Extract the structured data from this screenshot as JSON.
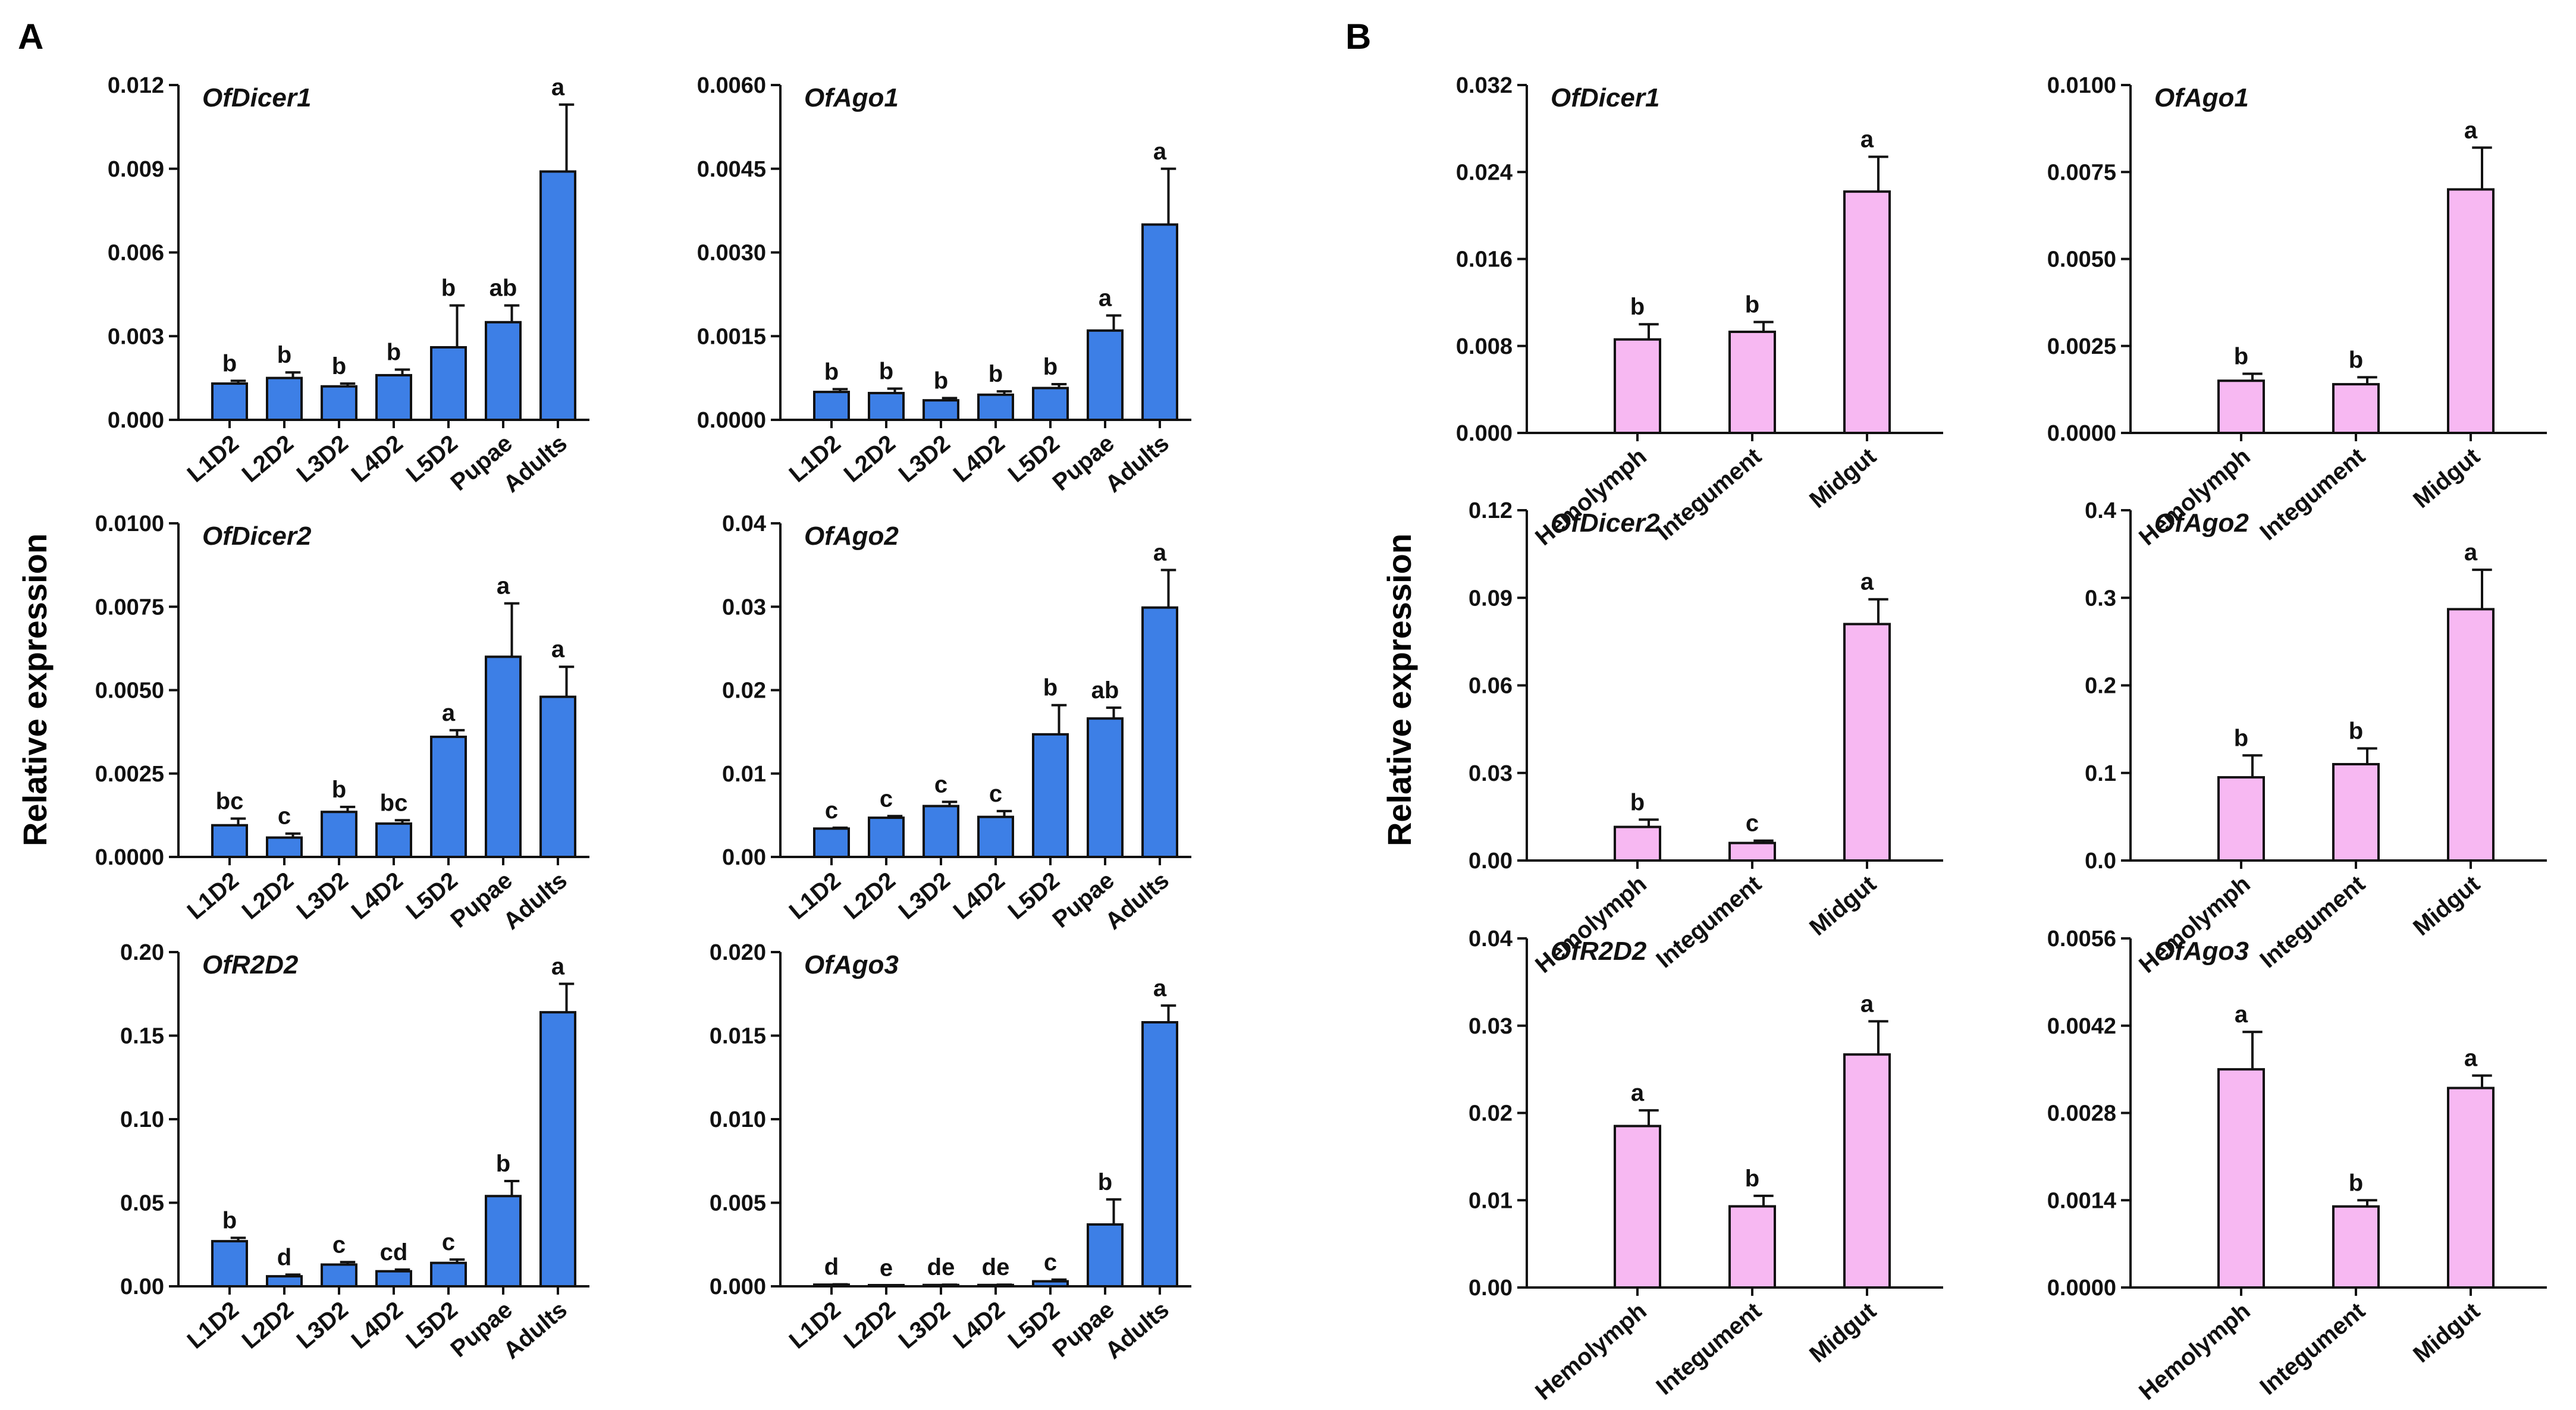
{
  "figure": {
    "panel_a_label": "A",
    "panel_b_label": "B",
    "ylabel": "Relative expression",
    "colors": {
      "a_bar": "#3d7fe6",
      "b_bar": "#f7b8f2",
      "stroke": "#111111"
    }
  },
  "chart_data": [
    {
      "panel": "A",
      "type": "bar",
      "title": "OfDicer1",
      "categories": [
        "L1D2",
        "L2D2",
        "L3D2",
        "L4D2",
        "L5D2",
        "Pupae",
        "Adults"
      ],
      "values": [
        0.0013,
        0.0015,
        0.0012,
        0.0016,
        0.0026,
        0.0035,
        0.0089
      ],
      "errors": [
        0.0001,
        0.0002,
        0.0001,
        0.0002,
        0.0015,
        0.0006,
        0.0024
      ],
      "letters": [
        "b",
        "b",
        "b",
        "b",
        "b",
        "ab",
        "a"
      ],
      "yticks": [
        "0.000",
        "0.003",
        "0.006",
        "0.009",
        "0.012"
      ],
      "ylim": [
        0,
        0.012
      ]
    },
    {
      "panel": "A",
      "type": "bar",
      "title": "OfAgo1",
      "categories": [
        "L1D2",
        "L2D2",
        "L3D2",
        "L4D2",
        "L5D2",
        "Pupae",
        "Adults"
      ],
      "values": [
        0.0005,
        0.00048,
        0.00035,
        0.00045,
        0.00057,
        0.0016,
        0.0035
      ],
      "errors": [
        5e-05,
        8e-05,
        4e-05,
        6e-05,
        7e-05,
        0.00027,
        0.001
      ],
      "letters": [
        "b",
        "b",
        "b",
        "b",
        "b",
        "a",
        "a"
      ],
      "yticks": [
        "0.0000",
        "0.0015",
        "0.0030",
        "0.0045",
        "0.0060"
      ],
      "ylim": [
        0,
        0.006
      ]
    },
    {
      "panel": "A",
      "type": "bar",
      "title": "OfDicer2",
      "categories": [
        "L1D2",
        "L2D2",
        "L3D2",
        "L4D2",
        "L5D2",
        "Pupae",
        "Adults"
      ],
      "values": [
        0.00095,
        0.00058,
        0.00135,
        0.001,
        0.0036,
        0.006,
        0.0048
      ],
      "errors": [
        0.0002,
        0.00012,
        0.00015,
        0.0001,
        0.0002,
        0.0016,
        0.0009
      ],
      "letters": [
        "bc",
        "c",
        "b",
        "bc",
        "a",
        "a",
        "a"
      ],
      "yticks": [
        "0.0000",
        "0.0025",
        "0.0050",
        "0.0075",
        "0.0100"
      ],
      "ylim": [
        0,
        0.01
      ]
    },
    {
      "panel": "A",
      "type": "bar",
      "title": "OfAgo2",
      "categories": [
        "L1D2",
        "L2D2",
        "L3D2",
        "L4D2",
        "L5D2",
        "Pupae",
        "Adults"
      ],
      "values": [
        0.0034,
        0.0047,
        0.0061,
        0.0048,
        0.0147,
        0.0166,
        0.0299
      ],
      "errors": [
        0.0001,
        0.0002,
        0.0005,
        0.0007,
        0.0035,
        0.0013,
        0.0045
      ],
      "letters": [
        "c",
        "c",
        "c",
        "c",
        "b",
        "ab",
        "a"
      ],
      "yticks": [
        "0.00",
        "0.01",
        "0.02",
        "0.03",
        "0.04"
      ],
      "ylim": [
        0,
        0.04
      ]
    },
    {
      "panel": "A",
      "type": "bar",
      "title": "OfR2D2",
      "categories": [
        "L1D2",
        "L2D2",
        "L3D2",
        "L4D2",
        "L5D2",
        "Pupae",
        "Adults"
      ],
      "values": [
        0.027,
        0.006,
        0.013,
        0.009,
        0.014,
        0.054,
        0.164
      ],
      "errors": [
        0.002,
        0.001,
        0.0015,
        0.001,
        0.002,
        0.009,
        0.017
      ],
      "letters": [
        "b",
        "d",
        "c",
        "cd",
        "c",
        "b",
        "a"
      ],
      "yticks": [
        "0.00",
        "0.05",
        "0.10",
        "0.15",
        "0.20"
      ],
      "ylim": [
        0,
        0.2
      ]
    },
    {
      "panel": "A",
      "type": "bar",
      "title": "OfAgo3",
      "categories": [
        "L1D2",
        "L2D2",
        "L3D2",
        "L4D2",
        "L5D2",
        "Pupae",
        "Adults"
      ],
      "values": [
        0.0001,
        5e-05,
        8e-05,
        8e-05,
        0.0003,
        0.0037,
        0.0158
      ],
      "errors": [
        2e-05,
        1e-05,
        2e-05,
        2e-05,
        0.0001,
        0.0015,
        0.001
      ],
      "letters": [
        "d",
        "e",
        "de",
        "de",
        "c",
        "b",
        "a"
      ],
      "yticks": [
        "0.000",
        "0.005",
        "0.010",
        "0.015",
        "0.020"
      ],
      "ylim": [
        0,
        0.02
      ]
    },
    {
      "panel": "B",
      "type": "bar",
      "title": "OfDicer1",
      "categories": [
        "Hemolymph",
        "Integument",
        "Midgut"
      ],
      "values": [
        0.0086,
        0.0093,
        0.0222
      ],
      "errors": [
        0.0014,
        0.0009,
        0.0032
      ],
      "letters": [
        "b",
        "b",
        "a"
      ],
      "yticks": [
        "0.000",
        "0.008",
        "0.016",
        "0.024",
        "0.032"
      ],
      "ylim": [
        0,
        0.032
      ]
    },
    {
      "panel": "B",
      "type": "bar",
      "title": "OfAgo1",
      "categories": [
        "Hemolymph",
        "Integument",
        "Midgut"
      ],
      "values": [
        0.0015,
        0.0014,
        0.007
      ],
      "errors": [
        0.0002,
        0.0002,
        0.0012
      ],
      "letters": [
        "b",
        "b",
        "a"
      ],
      "yticks": [
        "0.0000",
        "0.0025",
        "0.0050",
        "0.0075",
        "0.0100"
      ],
      "ylim": [
        0,
        0.01
      ]
    },
    {
      "panel": "B",
      "type": "bar",
      "title": "OfDicer2",
      "categories": [
        "Hemolymph",
        "Integument",
        "Midgut"
      ],
      "values": [
        0.0115,
        0.006,
        0.081
      ],
      "errors": [
        0.0025,
        0.0008,
        0.0085
      ],
      "letters": [
        "b",
        "c",
        "a"
      ],
      "yticks": [
        "0.00",
        "0.03",
        "0.06",
        "0.09",
        "0.12"
      ],
      "ylim": [
        0,
        0.12
      ]
    },
    {
      "panel": "B",
      "type": "bar",
      "title": "OfAgo2",
      "categories": [
        "Hemolymph",
        "Integument",
        "Midgut"
      ],
      "values": [
        0.095,
        0.11,
        0.287
      ],
      "errors": [
        0.025,
        0.018,
        0.045
      ],
      "letters": [
        "b",
        "b",
        "a"
      ],
      "yticks": [
        "0.0",
        "0.1",
        "0.2",
        "0.3",
        "0.4"
      ],
      "ylim": [
        0,
        0.4
      ]
    },
    {
      "panel": "B",
      "type": "bar",
      "title": "OfR2D2",
      "categories": [
        "Hemolymph",
        "Integument",
        "Midgut"
      ],
      "values": [
        0.0185,
        0.0093,
        0.0267
      ],
      "errors": [
        0.0018,
        0.0012,
        0.0038
      ],
      "letters": [
        "a",
        "b",
        "a"
      ],
      "yticks": [
        "0.00",
        "0.01",
        "0.02",
        "0.03",
        "0.04"
      ],
      "ylim": [
        0,
        0.04
      ]
    },
    {
      "panel": "B",
      "type": "bar",
      "title": "OfAgo3",
      "categories": [
        "Hemolymph",
        "Integument",
        "Midgut"
      ],
      "values": [
        0.0035,
        0.0013,
        0.0032
      ],
      "errors": [
        0.0006,
        0.0001,
        0.0002
      ],
      "letters": [
        "a",
        "b",
        "a"
      ],
      "yticks": [
        "0.0000",
        "0.0014",
        "0.0028",
        "0.0042",
        "0.0056"
      ],
      "ylim": [
        0,
        0.0056
      ]
    }
  ]
}
